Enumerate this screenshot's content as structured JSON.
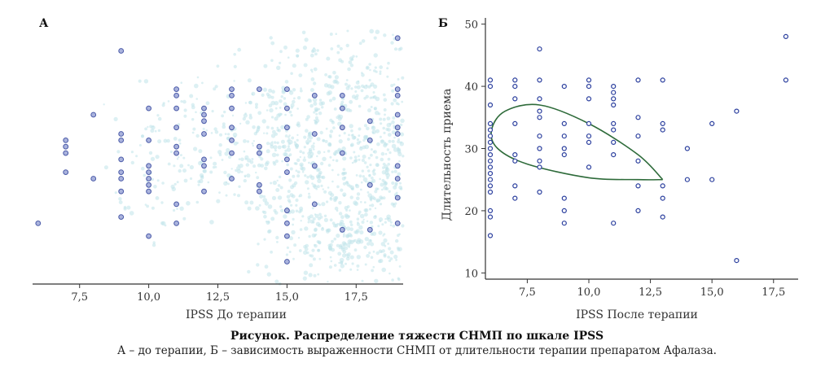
{
  "caption": {
    "title": "Рисунок. Распределение тяжести СНМП по шкале IPSS",
    "text": "А – до терапии, Б – зависимость выраженности СНМП от длительности терапии препаратом Афалаза."
  },
  "colors": {
    "point_fill_a": "#aab3dd",
    "point_stroke_a": "#4a5aa8",
    "point_stroke_b": "#2b3f9e",
    "cloud": "#bfe3ea",
    "ellipse": "#2e6b3a",
    "axis": "#333333"
  },
  "chart_data": [
    {
      "panel": "А",
      "type": "scatter",
      "title": "",
      "xlabel": "IPSS До терапии",
      "ylabel": "",
      "xlim": [
        5.8,
        19.2
      ],
      "ylim": [
        10.5,
        50.5
      ],
      "xticks": [
        7.5,
        10.0,
        12.5,
        15.0,
        17.5
      ],
      "xtick_labels": [
        "7,5",
        "10,0",
        "12,5",
        "15,0",
        "17,5"
      ],
      "show_y_axis": false,
      "points": [
        [
          6,
          20
        ],
        [
          7,
          33
        ],
        [
          7,
          32
        ],
        [
          7,
          31
        ],
        [
          7,
          28
        ],
        [
          8,
          37
        ],
        [
          8,
          27
        ],
        [
          9,
          47
        ],
        [
          9,
          34
        ],
        [
          9,
          33
        ],
        [
          9,
          30
        ],
        [
          9,
          28
        ],
        [
          9,
          27
        ],
        [
          9,
          25
        ],
        [
          9,
          21
        ],
        [
          10,
          38
        ],
        [
          10,
          33
        ],
        [
          10,
          29
        ],
        [
          10,
          28
        ],
        [
          10,
          27
        ],
        [
          10,
          26
        ],
        [
          10,
          25
        ],
        [
          10,
          18
        ],
        [
          11,
          41
        ],
        [
          11,
          40
        ],
        [
          11,
          38
        ],
        [
          11,
          35
        ],
        [
          11,
          32
        ],
        [
          11,
          31
        ],
        [
          11,
          23
        ],
        [
          11,
          20
        ],
        [
          12,
          38
        ],
        [
          12,
          37
        ],
        [
          12,
          36
        ],
        [
          12,
          34
        ],
        [
          12,
          30
        ],
        [
          12,
          29
        ],
        [
          12,
          25
        ],
        [
          13,
          41
        ],
        [
          13,
          40
        ],
        [
          13,
          38
        ],
        [
          13,
          35
        ],
        [
          13,
          33
        ],
        [
          13,
          31
        ],
        [
          13,
          27
        ],
        [
          14,
          41
        ],
        [
          14,
          32
        ],
        [
          14,
          31
        ],
        [
          14,
          26
        ],
        [
          14,
          25
        ],
        [
          15,
          41
        ],
        [
          15,
          38
        ],
        [
          15,
          35
        ],
        [
          15,
          30
        ],
        [
          15,
          28
        ],
        [
          15,
          22
        ],
        [
          15,
          20
        ],
        [
          15,
          18
        ],
        [
          15,
          14
        ],
        [
          16,
          40
        ],
        [
          16,
          34
        ],
        [
          16,
          29
        ],
        [
          16,
          23
        ],
        [
          17,
          40
        ],
        [
          17,
          38
        ],
        [
          17,
          35
        ],
        [
          17,
          31
        ],
        [
          17,
          19
        ],
        [
          18,
          36
        ],
        [
          18,
          33
        ],
        [
          18,
          26
        ],
        [
          18,
          19
        ],
        [
          19,
          49
        ],
        [
          19,
          41
        ],
        [
          19,
          40
        ],
        [
          19,
          37
        ],
        [
          19,
          35
        ],
        [
          19,
          34
        ],
        [
          19,
          29
        ],
        [
          19,
          27
        ],
        [
          19,
          24
        ],
        [
          19,
          20
        ]
      ]
    },
    {
      "panel": "Б",
      "type": "scatter",
      "title": "",
      "xlabel": "IPSS После терапии",
      "ylabel": "Длительность приема",
      "xlim": [
        5.8,
        18.5
      ],
      "ylim": [
        9,
        51
      ],
      "xticks": [
        7.5,
        10.0,
        12.5,
        15.0,
        17.5
      ],
      "xtick_labels": [
        "7,5",
        "10,0",
        "12,5",
        "15,0",
        "17,5"
      ],
      "yticks": [
        10,
        20,
        30,
        40,
        50
      ],
      "ytick_labels": [
        "10",
        "20",
        "30",
        "40",
        "50"
      ],
      "points": [
        [
          6,
          41
        ],
        [
          6,
          40
        ],
        [
          6,
          37
        ],
        [
          6,
          34
        ],
        [
          6,
          33
        ],
        [
          6,
          32
        ],
        [
          6,
          31
        ],
        [
          6,
          30
        ],
        [
          6,
          29
        ],
        [
          6,
          28
        ],
        [
          6,
          27
        ],
        [
          6,
          26
        ],
        [
          6,
          25
        ],
        [
          6,
          24
        ],
        [
          6,
          23
        ],
        [
          6,
          20
        ],
        [
          6,
          19
        ],
        [
          6,
          16
        ],
        [
          7,
          41
        ],
        [
          7,
          40
        ],
        [
          7,
          38
        ],
        [
          7,
          34
        ],
        [
          7,
          29
        ],
        [
          7,
          28
        ],
        [
          7,
          24
        ],
        [
          7,
          22
        ],
        [
          8,
          46
        ],
        [
          8,
          41
        ],
        [
          8,
          38
        ],
        [
          8,
          36
        ],
        [
          8,
          35
        ],
        [
          8,
          32
        ],
        [
          8,
          30
        ],
        [
          8,
          28
        ],
        [
          8,
          27
        ],
        [
          8,
          23
        ],
        [
          9,
          40
        ],
        [
          9,
          34
        ],
        [
          9,
          32
        ],
        [
          9,
          30
        ],
        [
          9,
          29
        ],
        [
          9,
          22
        ],
        [
          9,
          20
        ],
        [
          9,
          18
        ],
        [
          10,
          41
        ],
        [
          10,
          40
        ],
        [
          10,
          38
        ],
        [
          10,
          34
        ],
        [
          10,
          32
        ],
        [
          10,
          31
        ],
        [
          10,
          27
        ],
        [
          11,
          40
        ],
        [
          11,
          39
        ],
        [
          11,
          38
        ],
        [
          11,
          37
        ],
        [
          11,
          34
        ],
        [
          11,
          33
        ],
        [
          11,
          31
        ],
        [
          11,
          29
        ],
        [
          11,
          18
        ],
        [
          12,
          41
        ],
        [
          12,
          35
        ],
        [
          12,
          32
        ],
        [
          12,
          28
        ],
        [
          12,
          24
        ],
        [
          12,
          20
        ],
        [
          13,
          41
        ],
        [
          13,
          34
        ],
        [
          13,
          33
        ],
        [
          13,
          24
        ],
        [
          13,
          22
        ],
        [
          13,
          19
        ],
        [
          14,
          30
        ],
        [
          14,
          25
        ],
        [
          15,
          34
        ],
        [
          15,
          25
        ],
        [
          16,
          36
        ],
        [
          16,
          12
        ],
        [
          18,
          48
        ],
        [
          18,
          41
        ]
      ]
    }
  ]
}
